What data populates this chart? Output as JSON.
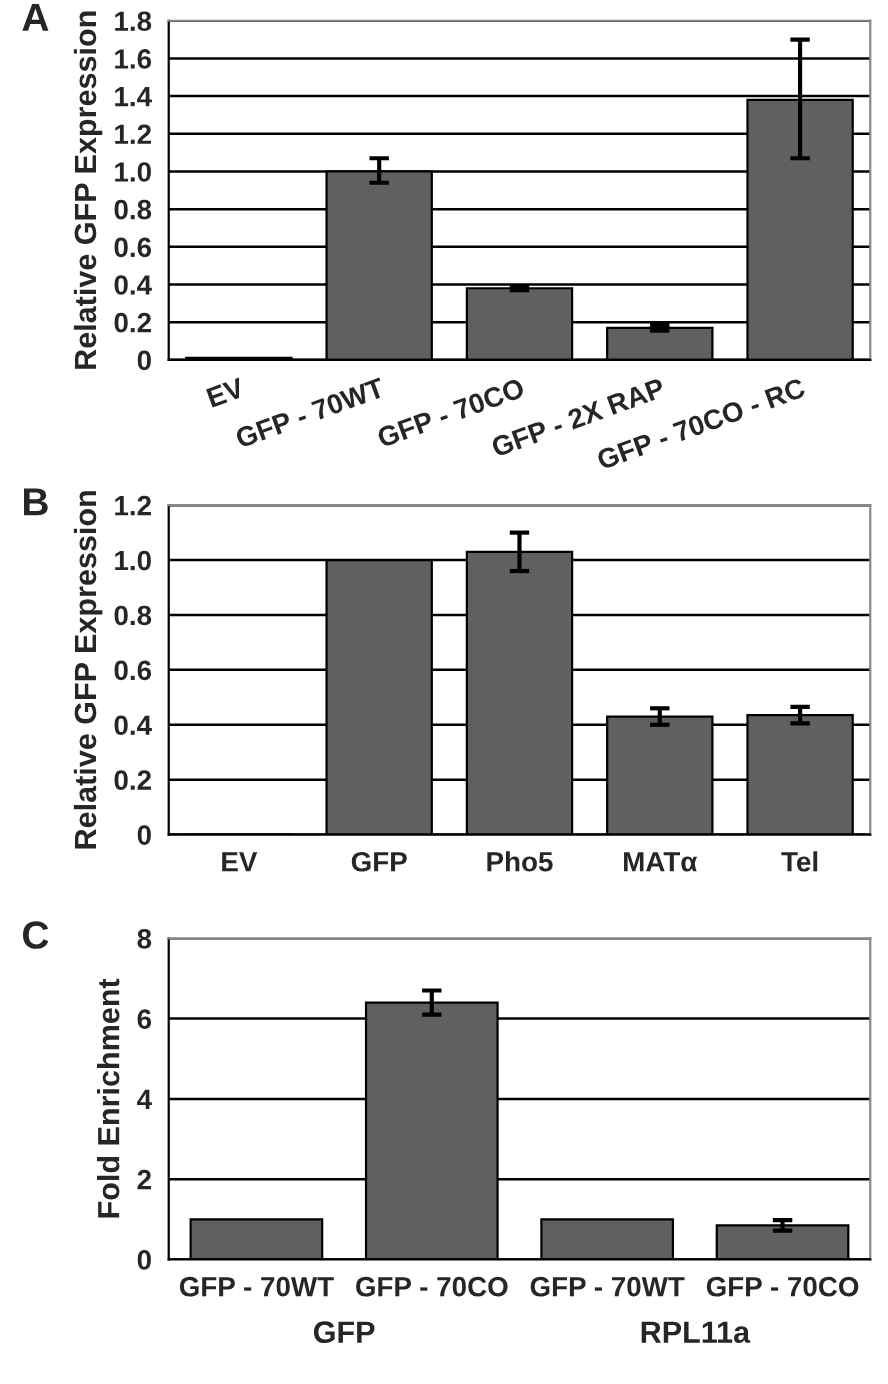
{
  "chart_data": [
    {
      "type": "bar",
      "annotations": [
        "A"
      ],
      "ylabel": "Relative GFP Expression",
      "categories": [
        "EV",
        "GFP - 70WT",
        "GFP - 70CO",
        "GFP - 2X RAP",
        "GFP - 70CO - RC"
      ],
      "values": [
        0.01,
        1.0,
        0.38,
        0.17,
        1.38
      ],
      "errors": [
        null,
        [
          0.94,
          1.07
        ],
        0.01,
        0.015,
        [
          1.07,
          1.7
        ]
      ],
      "color": "#606060",
      "ylim": [
        0,
        1.8
      ],
      "yticks": [
        0,
        {
          "value": 0.2,
          "label": "0.2"
        },
        {
          "value": 0.4,
          "label": "0.4"
        },
        {
          "value": 0.6,
          "label": "0.6"
        },
        {
          "value": 0.8,
          "label": "0.8"
        },
        {
          "value": 1.0,
          "label": "1.0"
        },
        {
          "value": 1.2,
          "label": "1.2"
        },
        {
          "value": 1.4,
          "label": "1.4"
        },
        {
          "value": 1.6,
          "label": "1.6"
        },
        {
          "value": 1.8,
          "label": "1.8"
        }
      ],
      "grid": "y"
    },
    {
      "type": "bar",
      "annotations": [
        "B"
      ],
      "ylabel": "Relative GFP Expression",
      "categories": [
        "EV",
        "GFP",
        "Pho5",
        "MATα",
        "Tel"
      ],
      "values": [
        0,
        1.0,
        1.03,
        0.43,
        0.435
      ],
      "errors": [
        null,
        null,
        [
          0.96,
          1.1
        ],
        0.03,
        0.03
      ],
      "color": "#606060",
      "ylim": [
        0,
        1.2
      ],
      "yticks": [
        0,
        {
          "value": 0.2,
          "label": "0.2"
        },
        {
          "value": 0.4,
          "label": "0.4"
        },
        {
          "value": 0.6,
          "label": "0.6"
        },
        {
          "value": 0.8,
          "label": "0.8"
        },
        {
          "value": 1.0,
          "label": "1.0"
        },
        {
          "value": 1.2,
          "label": "1.2"
        }
      ],
      "grid": "y"
    },
    {
      "type": "bar",
      "annotations": [
        "C",
        "GFP",
        "RPL11a"
      ],
      "ylabel": "Fold Enrichment",
      "categories": [
        "GFP - 70WT",
        "GFP - 70CO",
        "GFP - 70WT",
        "GFP - 70CO"
      ],
      "values": [
        1.0,
        6.4,
        1.0,
        0.85
      ],
      "errors": [
        null,
        [
          6.1,
          6.7
        ],
        null,
        [
          0.72,
          0.98
        ]
      ],
      "color": "#606060",
      "ylim": [
        0,
        8
      ],
      "yticks": [
        0,
        2,
        4,
        6,
        8
      ],
      "grid": "y"
    }
  ]
}
